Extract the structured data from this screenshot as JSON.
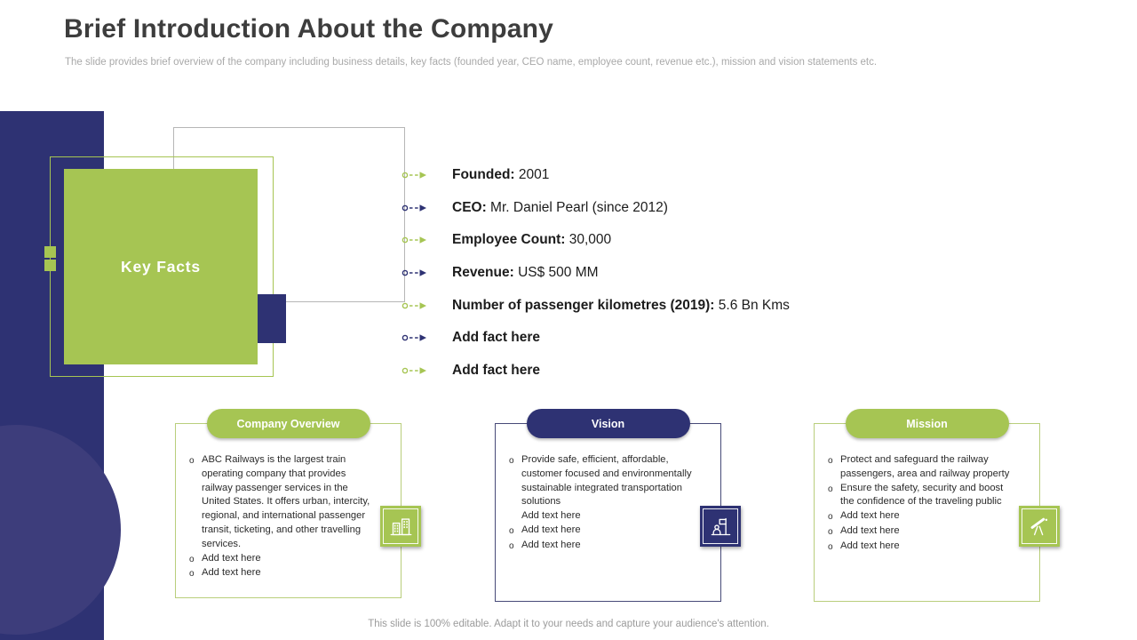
{
  "slide": {
    "title": "Brief Introduction About the Company",
    "subtitle": "The slide provides brief overview of the company including business details, key facts (founded year, CEO name, employee count, revenue etc.), mission and vision statements etc.",
    "footer": "This slide is 100% editable. Adapt it to your needs and capture your audience's attention."
  },
  "key_facts": {
    "label": "Key Facts",
    "facts": [
      {
        "label": "Founded:",
        "value": "2001",
        "arrow_color": "green"
      },
      {
        "label": "CEO:",
        "value": "Mr. Daniel Pearl (since 2012)",
        "arrow_color": "navy"
      },
      {
        "label": "Employee Count:",
        "value": "30,000",
        "arrow_color": "green"
      },
      {
        "label": "Revenue:",
        "value": "US$ 500 MM",
        "arrow_color": "navy"
      },
      {
        "label": "Number of passenger kilometres (2019):",
        "value": "5.6 Bn Kms",
        "arrow_color": "green"
      },
      {
        "label": "Add fact here",
        "value": "",
        "arrow_color": "navy"
      },
      {
        "label": "Add fact here",
        "value": "",
        "arrow_color": "green"
      }
    ]
  },
  "columns": [
    {
      "header": "Company Overview",
      "accent": "green",
      "icon": "building-icon",
      "items": [
        {
          "bullet": true,
          "text": "ABC Railways is the largest train operating company that provides railway passenger services in the United States. It offers urban, intercity, regional, and international passenger transit, ticketing, and other travelling services."
        },
        {
          "bullet": true,
          "text": "Add text here"
        },
        {
          "bullet": true,
          "text": "Add text here"
        }
      ]
    },
    {
      "header": "Vision",
      "accent": "navy",
      "icon": "flag-passenger-icon",
      "items": [
        {
          "bullet": true,
          "text": "Provide safe, efficient, affordable, customer focused and environmentally sustainable integrated transportation solutions"
        },
        {
          "bullet": false,
          "text": "Add text here"
        },
        {
          "bullet": true,
          "text": "Add text here"
        },
        {
          "bullet": true,
          "text": "Add text here"
        }
      ]
    },
    {
      "header": "Mission",
      "accent": "green",
      "icon": "telescope-icon",
      "items": [
        {
          "bullet": true,
          "text": "Protect and safeguard the railway passengers, area and railway property"
        },
        {
          "bullet": true,
          "text": "Ensure the safety, security and boost the confidence of the traveling public"
        },
        {
          "bullet": true,
          "text": "Add text here"
        },
        {
          "bullet": true,
          "text": "Add text here"
        },
        {
          "bullet": true,
          "text": "Add text here"
        }
      ]
    }
  ],
  "colors": {
    "green": "#a6c553",
    "navy": "#2e3273",
    "green_border": "#b9ce7c",
    "navy_border": "#474a78"
  }
}
